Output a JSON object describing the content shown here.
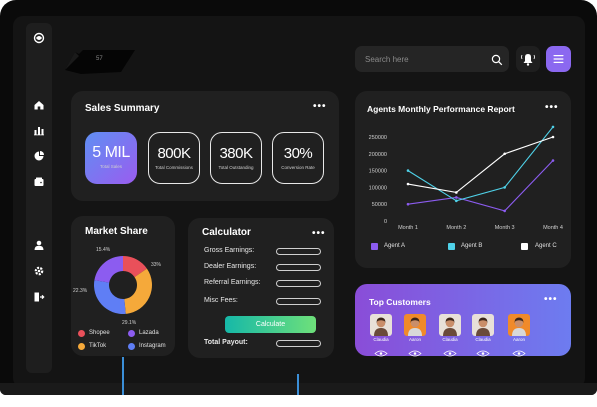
{
  "search": {
    "placeholder": "Search here"
  },
  "header": {
    "logo_text": "57"
  },
  "sales_summary": {
    "title": "Sales Summary",
    "kpis": [
      {
        "value": "5 MIL",
        "label": "Total Sales"
      },
      {
        "value": "800K",
        "label": "Total Commissions"
      },
      {
        "value": "380K",
        "label": "Total Outstanding"
      },
      {
        "value": "30%",
        "label": "Conversion Rate"
      }
    ]
  },
  "market_share": {
    "title": "Market Share",
    "percent_labels": [
      "15.4%",
      "33%",
      "22.3%",
      "29.1%"
    ],
    "legend": [
      "Shopee",
      "Lazada",
      "TikTok",
      "Instagram"
    ],
    "colors": {
      "shopee": "#e9505a",
      "lazada": "#8c5cf0",
      "tiktok": "#f5a93a",
      "instagram": "#5f7ef5"
    }
  },
  "calculator": {
    "title": "Calculator",
    "fields": [
      "Gross Earnings:",
      "Dealer Earnings:",
      "Referral Earnings:",
      "Misc Fees:"
    ],
    "button": "Calculate",
    "total_label": "Total Payout:"
  },
  "performance": {
    "title": "Agents Monthly Performance Report",
    "legend": [
      "Agent A",
      "Agent B",
      "Agent C"
    ]
  },
  "chart_data": {
    "type": "line",
    "title": "Agents Monthly Performance Report",
    "categories": [
      "Month 1",
      "Month 2",
      "Month 3",
      "Month 4"
    ],
    "yticks": [
      "250000",
      "200000",
      "150000",
      "100000",
      "50000",
      "0"
    ],
    "ylim": [
      0,
      250000
    ],
    "series": [
      {
        "name": "Agent A",
        "color": "#8c5cf0",
        "values": [
          50000,
          70000,
          30000,
          180000
        ]
      },
      {
        "name": "Agent B",
        "color": "#4fd1e8",
        "values": [
          150000,
          60000,
          100000,
          280000
        ]
      },
      {
        "name": "Agent C",
        "color": "#ffffff",
        "values": [
          110000,
          85000,
          200000,
          250000
        ]
      }
    ],
    "grid": false,
    "legend_position": "bottom"
  },
  "top_customers": {
    "title": "Top Customers",
    "customers": [
      {
        "name": "Claudia",
        "shirt": "#6a4a3a",
        "bg": "#e8e0d8"
      },
      {
        "name": "Aaron",
        "shirt": "#d8d8d8",
        "bg": "#f08a2a"
      },
      {
        "name": "Claudia",
        "shirt": "#6a4a3a",
        "bg": "#e8e0d8"
      },
      {
        "name": "Claudia",
        "shirt": "#6a4a3a",
        "bg": "#e8e0d8"
      },
      {
        "name": "Aaron",
        "shirt": "#d8d8d8",
        "bg": "#f08a2a"
      }
    ]
  },
  "colors": {
    "accent": "#8b68f0",
    "card": "#202020",
    "kpi_gradient_start": "#5f8ff2",
    "kpi_gradient_end": "#9a5cf0"
  }
}
